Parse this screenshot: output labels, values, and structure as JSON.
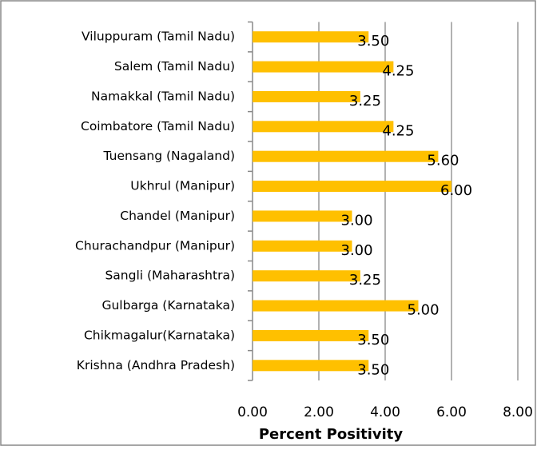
{
  "chart_data": {
    "type": "barh",
    "x_label": "Percent Positivity",
    "categories": [
      "Viluppuram (Tamil Nadu)",
      "Salem (Tamil Nadu)",
      "Namakkal (Tamil Nadu)",
      "Coimbatore (Tamil Nadu)",
      "Tuensang (Nagaland)",
      "Ukhrul (Manipur)",
      "Chandel (Manipur)",
      "Churachandpur (Manipur)",
      "Sangli (Maharashtra)",
      "Gulbarga (Karnataka)",
      "Chikmagalur(Karnataka)",
      "Krishna (Andhra Pradesh)"
    ],
    "values": [
      3.5,
      4.25,
      3.25,
      4.25,
      5.6,
      6.0,
      3.0,
      3.0,
      3.25,
      5.0,
      3.5,
      3.5
    ],
    "value_labels": [
      "3.50",
      "4.25",
      "3.25",
      "4.25",
      "5.60",
      "6.00",
      "3.00",
      "3.00",
      "3.25",
      "5.00",
      "3.50",
      "3.50"
    ],
    "color": "#ffc000",
    "xlim": [
      0,
      8
    ],
    "xticks": [
      {
        "value": 0,
        "label": "0.00"
      },
      {
        "value": 2,
        "label": "2.00"
      },
      {
        "value": 4,
        "label": "4.00"
      },
      {
        "value": 6,
        "label": "6.00"
      },
      {
        "value": 8,
        "label": "8.00"
      }
    ],
    "grid": true
  }
}
